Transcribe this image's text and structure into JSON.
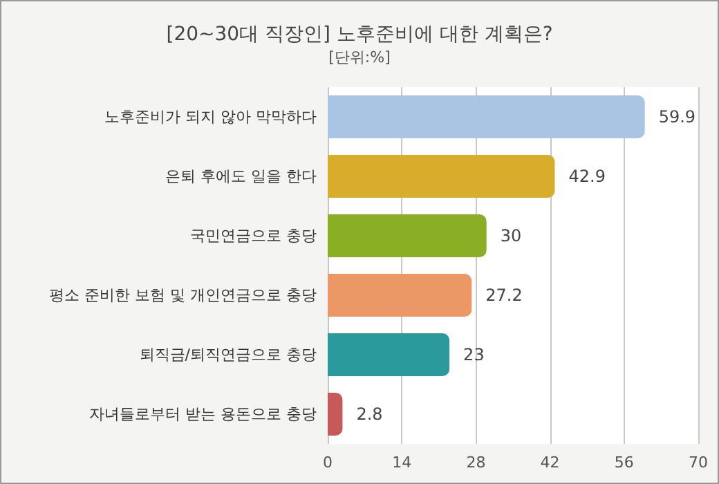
{
  "chart_data": {
    "type": "bar",
    "orientation": "horizontal",
    "title": "[20~30대 직장인] 노후준비에 대한 계획은?",
    "subtitle": "[단위:%]",
    "categories": [
      "노후준비가 되지 않아 막막하다",
      "은퇴 후에도 일을 한다",
      "국민연금으로 충당",
      "평소 준비한 보험 및 개인연금으로 충당",
      "퇴직금/퇴직연금으로 충당",
      "자녀들로부터 받는 용돈으로 충당"
    ],
    "values": [
      59.9,
      42.9,
      30,
      27.2,
      23,
      2.8
    ],
    "colors": [
      "#a9c5e3",
      "#d9ad2c",
      "#8aae24",
      "#eb9866",
      "#2b9a9c",
      "#c65a5a"
    ],
    "xlim": [
      0,
      70
    ],
    "xticks": [
      0,
      14,
      28,
      42,
      56,
      70
    ],
    "grid": "x",
    "data_labels": true
  }
}
